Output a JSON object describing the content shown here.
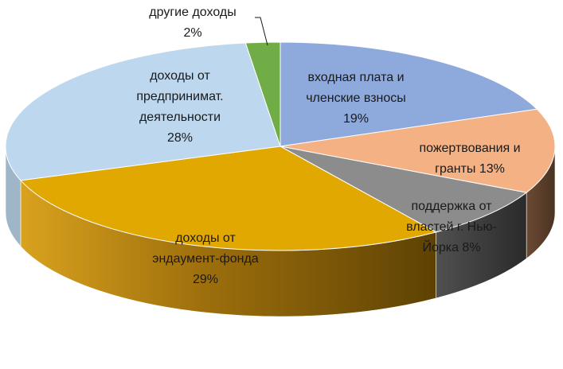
{
  "chart_data": {
    "type": "pie",
    "style": "3d",
    "title": "",
    "slices": [
      {
        "name": "входная плата и членские взносы",
        "value": 19,
        "color": "#8EA9DB",
        "label_lines": [
          "входная плата и",
          "членские взносы",
          "19%"
        ]
      },
      {
        "name": "пожертвования и гранты",
        "value": 13,
        "color": "#F4B183",
        "label_lines": [
          "пожертвования и",
          "гранты 13%"
        ]
      },
      {
        "name": "поддержка от властей г. Нью-Йорка",
        "value": 8,
        "color": "#8C8C8C",
        "label_lines": [
          "поддержка от",
          "властей г. Нью-",
          "Йорка 8%"
        ]
      },
      {
        "name": "доходы от эндаумент-фонда",
        "value": 29,
        "color": "#E0A800",
        "label_lines": [
          "доходы от",
          "эндаумент-фонда",
          "29%"
        ]
      },
      {
        "name": "доходы от предпринимат. деятельности",
        "value": 28,
        "color": "#BDD7EE",
        "label_lines": [
          "доходы от",
          "предпринимат.",
          "деятельности",
          "28%"
        ]
      },
      {
        "name": "другие доходы",
        "value": 2,
        "color": "#70AD47",
        "label_lines": [
          "другие доходы",
          "2%"
        ]
      }
    ]
  }
}
